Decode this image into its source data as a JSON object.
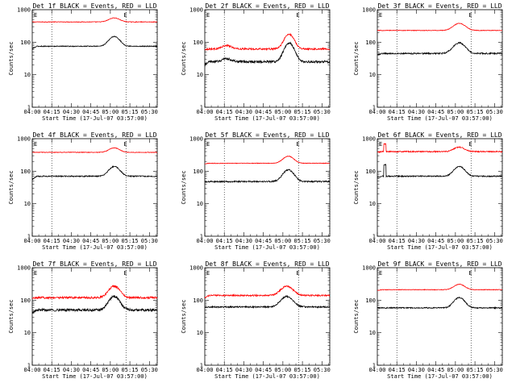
{
  "chart_data": {
    "type": "line",
    "x_tick_labels": [
      "04:00",
      "04:15",
      "04:30",
      "04:45",
      "05:00",
      "05:15",
      "05:30"
    ],
    "x_tick_values_hours": [
      4.0,
      4.25,
      4.5,
      4.75,
      5.0,
      5.25,
      5.5
    ],
    "xlim_hours": [
      4.0,
      5.6
    ],
    "dotted_markers_hours": [
      4.25,
      5.2,
      5.6
    ],
    "ylim": [
      1,
      1000
    ],
    "y_scale": "log",
    "y_tick_labels": [
      "1",
      "10",
      "100",
      "1000"
    ],
    "ylabel": "Counts/sec",
    "xlabel": "Start Time (17-Jul-07 03:57:00)",
    "marker_label": "E",
    "colors": {
      "events": "#000000",
      "lld": "#ff0000"
    },
    "panels": [
      {
        "title": "Det 1f BLACK = Events, RED = LLD",
        "events": {
          "base": 75,
          "peak": 150,
          "peak_time": 5.05,
          "width": 0.09,
          "noise": 0.03,
          "start": 62
        },
        "lld": {
          "base": 420,
          "peak": 560,
          "peak_time": 5.05,
          "width": 0.09,
          "noise": 0.02,
          "start": 420
        }
      },
      {
        "title": "Det 2f BLACK = Events, RED = LLD",
        "events": {
          "base": 25,
          "peak": 95,
          "peak_time": 5.08,
          "width": 0.08,
          "noise": 0.08,
          "start": 20,
          "bump": 35
        },
        "lld": {
          "base": 62,
          "peak": 175,
          "peak_time": 5.08,
          "width": 0.08,
          "noise": 0.06,
          "start": 60,
          "bump": 90
        }
      },
      {
        "title": "Det 3f BLACK = Events, RED = LLD",
        "events": {
          "base": 45,
          "peak": 95,
          "peak_time": 5.05,
          "width": 0.1,
          "noise": 0.05,
          "start": 42
        },
        "lld": {
          "base": 230,
          "peak": 380,
          "peak_time": 5.05,
          "width": 0.1,
          "noise": 0.02,
          "start": 230
        }
      },
      {
        "title": "Det 4f BLACK = Events, RED = LLD",
        "events": {
          "base": 70,
          "peak": 140,
          "peak_time": 5.05,
          "width": 0.09,
          "noise": 0.04,
          "start": 55
        },
        "lld": {
          "base": 380,
          "peak": 520,
          "peak_time": 5.05,
          "width": 0.09,
          "noise": 0.02,
          "start": 380
        }
      },
      {
        "title": "Det 5f BLACK = Events, RED = LLD",
        "events": {
          "base": 48,
          "peak": 110,
          "peak_time": 5.07,
          "width": 0.09,
          "noise": 0.05,
          "start": 45
        },
        "lld": {
          "base": 175,
          "peak": 290,
          "peak_time": 5.07,
          "width": 0.09,
          "noise": 0.02,
          "start": 170
        }
      },
      {
        "title": "Det 6f BLACK = Events, RED = LLD",
        "events": {
          "base": 70,
          "peak": 140,
          "peak_time": 5.05,
          "width": 0.09,
          "noise": 0.04,
          "start": 65,
          "spike": 160
        },
        "lld": {
          "base": 400,
          "peak": 550,
          "peak_time": 5.05,
          "width": 0.09,
          "noise": 0.04,
          "start": 380,
          "spike": 700
        }
      },
      {
        "title": "Det 7f BLACK = Events, RED = LLD",
        "events": {
          "base": 50,
          "peak": 130,
          "peak_time": 5.05,
          "width": 0.09,
          "noise": 0.09,
          "start": 40
        },
        "lld": {
          "base": 120,
          "peak": 270,
          "peak_time": 5.05,
          "width": 0.09,
          "noise": 0.07,
          "start": 115
        }
      },
      {
        "title": "Det 8f BLACK = Events, RED = LLD",
        "events": {
          "base": 62,
          "peak": 130,
          "peak_time": 5.05,
          "width": 0.1,
          "noise": 0.05,
          "start": 60
        },
        "lld": {
          "base": 140,
          "peak": 270,
          "peak_time": 5.05,
          "width": 0.1,
          "noise": 0.05,
          "start": 120
        }
      },
      {
        "title": "Det 9f BLACK = Events, RED = LLD",
        "events": {
          "base": 58,
          "peak": 120,
          "peak_time": 5.05,
          "width": 0.09,
          "noise": 0.04,
          "start": 58
        },
        "lld": {
          "base": 210,
          "peak": 310,
          "peak_time": 5.05,
          "width": 0.09,
          "noise": 0.02,
          "start": 200
        }
      }
    ]
  }
}
